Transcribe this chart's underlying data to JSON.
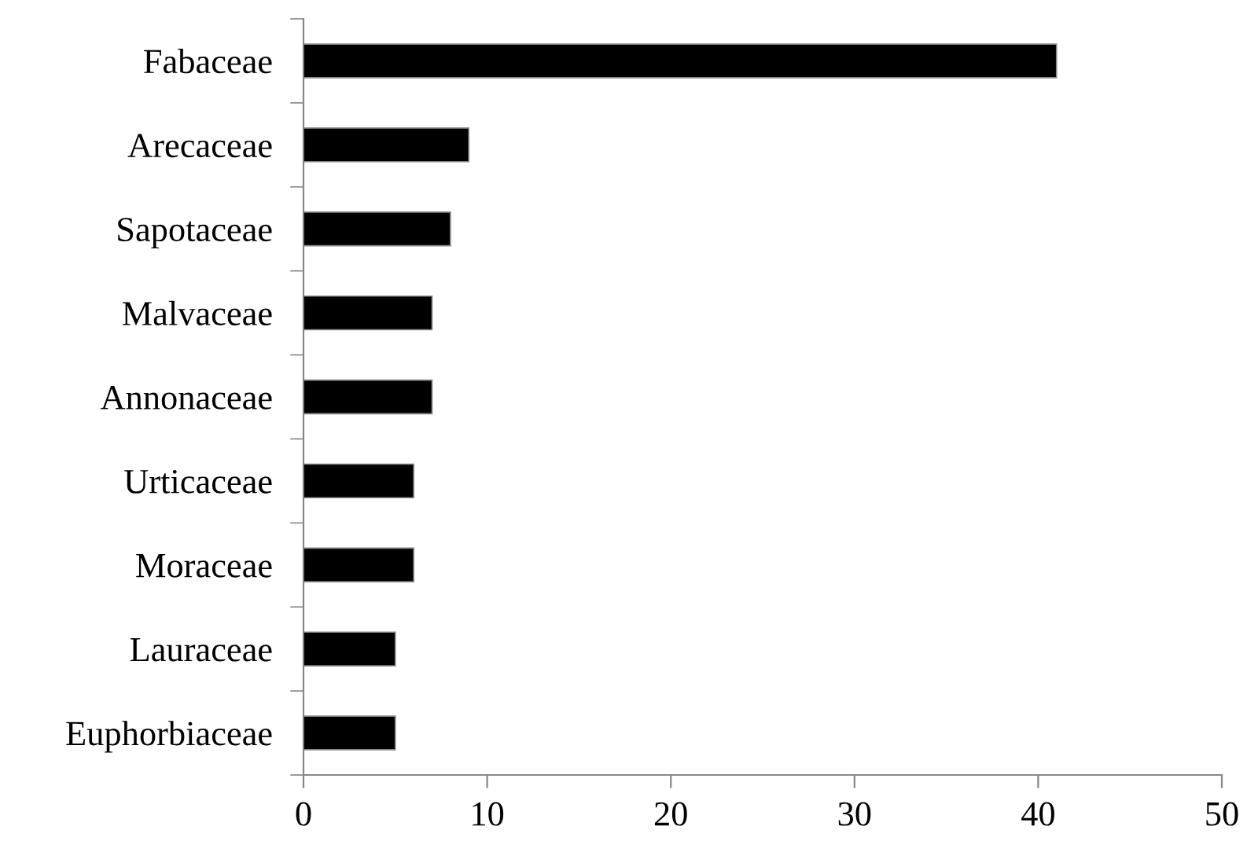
{
  "chart_data": {
    "type": "bar",
    "orientation": "horizontal",
    "categories": [
      "Fabaceae",
      "Arecaceae",
      "Sapotaceae",
      "Malvaceae",
      "Annonaceae",
      "Urticaceae",
      "Moraceae",
      "Lauraceae",
      "Euphorbiaceae"
    ],
    "values": [
      41,
      9,
      8,
      7,
      7,
      6,
      6,
      5,
      5
    ],
    "color": "#000000",
    "xlim": [
      0,
      50
    ],
    "xticks": [
      0,
      10,
      20,
      30,
      40,
      50
    ],
    "grid": false,
    "legend": false
  }
}
